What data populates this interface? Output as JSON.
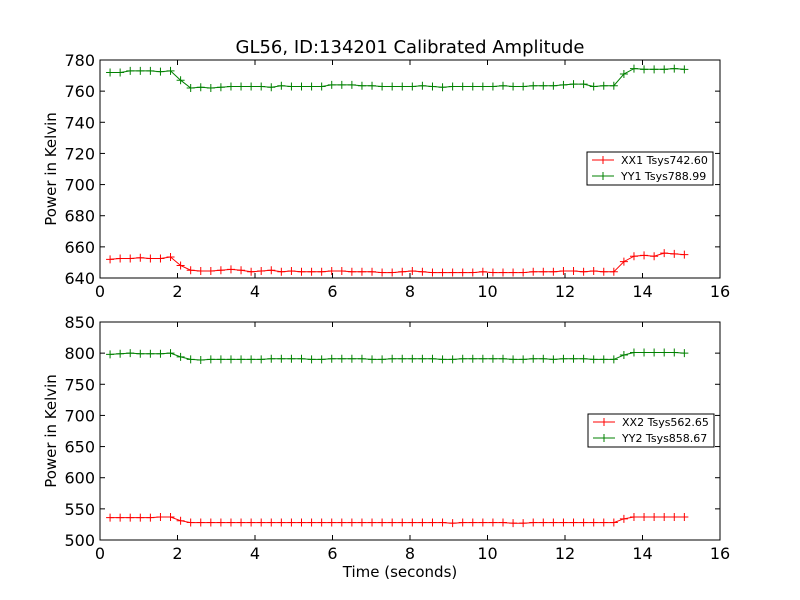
{
  "figure": {
    "title": "GL56, ID:134201 Calibrated Amplitude"
  },
  "chart_data": [
    {
      "type": "line",
      "title": "GL56, ID:134201 Calibrated Amplitude",
      "xlabel": "",
      "ylabel": "Power in Kelvin",
      "xlim": [
        0,
        16
      ],
      "ylim": [
        640,
        780
      ],
      "xticks": [
        0,
        2,
        4,
        6,
        8,
        10,
        12,
        14,
        16
      ],
      "yticks": [
        640,
        660,
        680,
        700,
        720,
        740,
        760,
        780
      ],
      "legend_position": "center-right",
      "grid": false,
      "series": [
        {
          "name": "XX1 Tsys742.60",
          "color": "#ff0000",
          "marker": "plus",
          "x": [
            0.26,
            0.52,
            0.78,
            1.04,
            1.3,
            1.56,
            1.82,
            2.08,
            2.34,
            2.6,
            2.86,
            3.12,
            3.38,
            3.64,
            3.9,
            4.16,
            4.42,
            4.68,
            4.94,
            5.2,
            5.46,
            5.72,
            5.98,
            6.24,
            6.5,
            6.76,
            7.02,
            7.28,
            7.54,
            7.8,
            8.06,
            8.32,
            8.58,
            8.84,
            9.1,
            9.36,
            9.62,
            9.88,
            10.14,
            10.4,
            10.66,
            10.92,
            11.18,
            11.44,
            11.7,
            11.96,
            12.22,
            12.48,
            12.74,
            13.0,
            13.26,
            13.52,
            13.78,
            14.04,
            14.3,
            14.56,
            14.82,
            15.08
          ],
          "values": [
            652,
            652.5,
            652.5,
            653,
            652.5,
            652.5,
            653.5,
            648,
            645,
            644.5,
            644.5,
            645,
            645.5,
            645,
            644,
            644.5,
            645,
            644,
            644.5,
            644,
            644,
            644,
            644.5,
            644.5,
            644,
            644,
            644,
            643.5,
            643.5,
            644,
            644.5,
            644,
            643.5,
            643.5,
            643.5,
            643.5,
            643.5,
            644,
            643.5,
            643.5,
            643.5,
            643.5,
            644,
            644,
            644,
            644.5,
            644.5,
            644,
            644.5,
            644,
            644,
            650.5,
            654,
            654.5,
            654,
            656,
            655.5,
            655
          ]
        },
        {
          "name": "YY1 Tsys788.99",
          "color": "#008000",
          "marker": "plus",
          "x": [
            0.26,
            0.52,
            0.78,
            1.04,
            1.3,
            1.56,
            1.82,
            2.08,
            2.34,
            2.6,
            2.86,
            3.12,
            3.38,
            3.64,
            3.9,
            4.16,
            4.42,
            4.68,
            4.94,
            5.2,
            5.46,
            5.72,
            5.98,
            6.24,
            6.5,
            6.76,
            7.02,
            7.28,
            7.54,
            7.8,
            8.06,
            8.32,
            8.58,
            8.84,
            9.1,
            9.36,
            9.62,
            9.88,
            10.14,
            10.4,
            10.66,
            10.92,
            11.18,
            11.44,
            11.7,
            11.96,
            12.22,
            12.48,
            12.74,
            13.0,
            13.26,
            13.52,
            13.78,
            14.04,
            14.3,
            14.56,
            14.82,
            15.08
          ],
          "values": [
            772,
            772,
            773,
            773,
            773,
            772.5,
            773,
            767,
            762,
            762.5,
            762,
            762.5,
            763,
            763,
            763,
            763,
            762.5,
            763.5,
            763,
            763,
            763,
            763,
            764,
            764,
            764,
            763.5,
            763.5,
            763,
            763,
            763,
            763,
            763.5,
            763,
            762.5,
            763,
            763,
            763,
            763,
            763,
            763.5,
            763,
            763,
            763.5,
            763.5,
            763.5,
            764,
            764.5,
            764.5,
            763,
            763.5,
            763.5,
            771,
            774.5,
            774,
            774,
            774,
            774.5,
            774
          ]
        }
      ]
    },
    {
      "type": "line",
      "title": "",
      "xlabel": "Time (seconds)",
      "ylabel": "Power in Kelvin",
      "xlim": [
        0,
        16
      ],
      "ylim": [
        500,
        850
      ],
      "xticks": [
        0,
        2,
        4,
        6,
        8,
        10,
        12,
        14,
        16
      ],
      "yticks": [
        500,
        550,
        600,
        650,
        700,
        750,
        800,
        850
      ],
      "legend_position": "center-right",
      "grid": false,
      "series": [
        {
          "name": "XX2 Tsys562.65",
          "color": "#ff0000",
          "marker": "plus",
          "x": [
            0.26,
            0.52,
            0.78,
            1.04,
            1.3,
            1.56,
            1.82,
            2.08,
            2.34,
            2.6,
            2.86,
            3.12,
            3.38,
            3.64,
            3.9,
            4.16,
            4.42,
            4.68,
            4.94,
            5.2,
            5.46,
            5.72,
            5.98,
            6.24,
            6.5,
            6.76,
            7.02,
            7.28,
            7.54,
            7.8,
            8.06,
            8.32,
            8.58,
            8.84,
            9.1,
            9.36,
            9.62,
            9.88,
            10.14,
            10.4,
            10.66,
            10.92,
            11.18,
            11.44,
            11.7,
            11.96,
            12.22,
            12.48,
            12.74,
            13.0,
            13.26,
            13.52,
            13.78,
            14.04,
            14.3,
            14.56,
            14.82,
            15.08
          ],
          "values": [
            536,
            536,
            536,
            536,
            536,
            537,
            537,
            531,
            528,
            528,
            528,
            528,
            528,
            528,
            528,
            528,
            528,
            528,
            528,
            528,
            528,
            528,
            528,
            528,
            528,
            528,
            528,
            528,
            528,
            528,
            528,
            528,
            528,
            528,
            527,
            528,
            528,
            528,
            528,
            528,
            527,
            527,
            528,
            528,
            528,
            528,
            528,
            528,
            528,
            528,
            528,
            534,
            537,
            537,
            537,
            537,
            537,
            537
          ]
        },
        {
          "name": "YY2 Tsys858.67",
          "color": "#008000",
          "marker": "plus",
          "x": [
            0.26,
            0.52,
            0.78,
            1.04,
            1.3,
            1.56,
            1.82,
            2.08,
            2.34,
            2.6,
            2.86,
            3.12,
            3.38,
            3.64,
            3.9,
            4.16,
            4.42,
            4.68,
            4.94,
            5.2,
            5.46,
            5.72,
            5.98,
            6.24,
            6.5,
            6.76,
            7.02,
            7.28,
            7.54,
            7.8,
            8.06,
            8.32,
            8.58,
            8.84,
            9.1,
            9.36,
            9.62,
            9.88,
            10.14,
            10.4,
            10.66,
            10.92,
            11.18,
            11.44,
            11.7,
            11.96,
            12.22,
            12.48,
            12.74,
            13.0,
            13.26,
            13.52,
            13.78,
            14.04,
            14.3,
            14.56,
            14.82,
            15.08
          ],
          "values": [
            798,
            799,
            800,
            799,
            799,
            799,
            800,
            794,
            790,
            789,
            790,
            790,
            790,
            790,
            790,
            790,
            791,
            791,
            791,
            791,
            790,
            790,
            791,
            791,
            791,
            791,
            790,
            790,
            791,
            791,
            791,
            791,
            791,
            790,
            790,
            791,
            791,
            791,
            791,
            791,
            790,
            790,
            791,
            791,
            790,
            791,
            791,
            791,
            790,
            790,
            790,
            797,
            801,
            801,
            801,
            801,
            801,
            800
          ]
        }
      ]
    }
  ]
}
